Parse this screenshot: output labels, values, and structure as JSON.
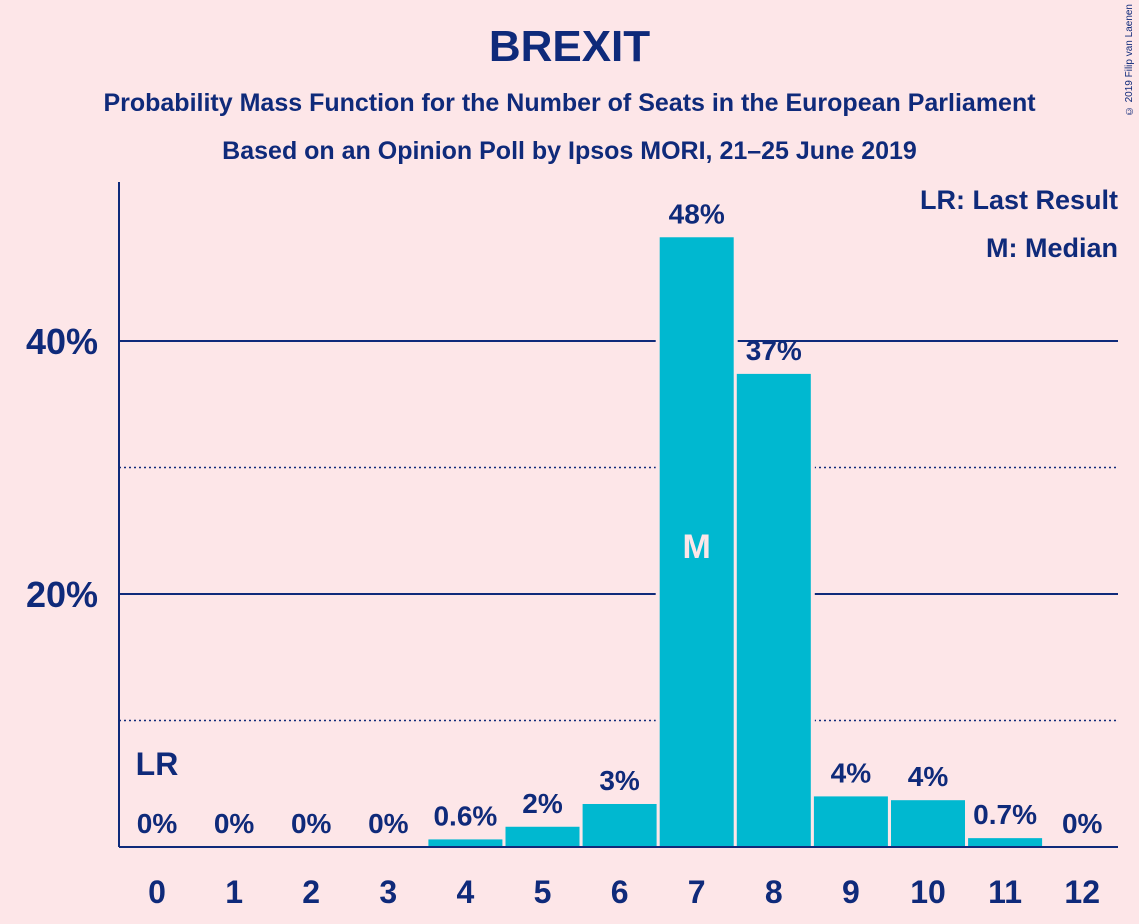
{
  "title": "BREXIT",
  "subtitle_1": "Probability Mass Function for the Number of Seats in the European Parliament",
  "subtitle_2": "Based on an Opinion Poll by Ipsos MORI, 21–25 June 2019",
  "copyright": "© 2019 Filip van Laenen",
  "legend": {
    "last_result": "LR: Last Result",
    "median": "M: Median"
  },
  "markers": {
    "last_result_label": "LR",
    "median_label": "M"
  },
  "colors": {
    "bar": "#00b8d0",
    "text": "#0f2a7a",
    "background": "#fde6e8",
    "median_text": "#fde6e8"
  },
  "chart_data": {
    "type": "bar",
    "categories": [
      "0",
      "1",
      "2",
      "3",
      "4",
      "5",
      "6",
      "7",
      "8",
      "9",
      "10",
      "11",
      "12"
    ],
    "values": [
      0,
      0,
      0,
      0,
      0.6,
      1.6,
      3.4,
      48.2,
      37.4,
      4.0,
      3.7,
      0.7,
      0
    ],
    "value_labels": [
      "0%",
      "0%",
      "0%",
      "0%",
      "0.6%",
      "2%",
      "3%",
      "48%",
      "37%",
      "4%",
      "4%",
      "0.7%",
      "0%"
    ],
    "y_ticks": [
      20,
      40
    ],
    "y_tick_labels": [
      "20%",
      "40%"
    ],
    "y_minor_ticks": [
      10,
      30
    ],
    "ylim": [
      0,
      52.5
    ],
    "last_result_category": "0",
    "median_category": "7",
    "xlabel": "",
    "ylabel": "",
    "grid": true,
    "legend_position": "top-right"
  }
}
